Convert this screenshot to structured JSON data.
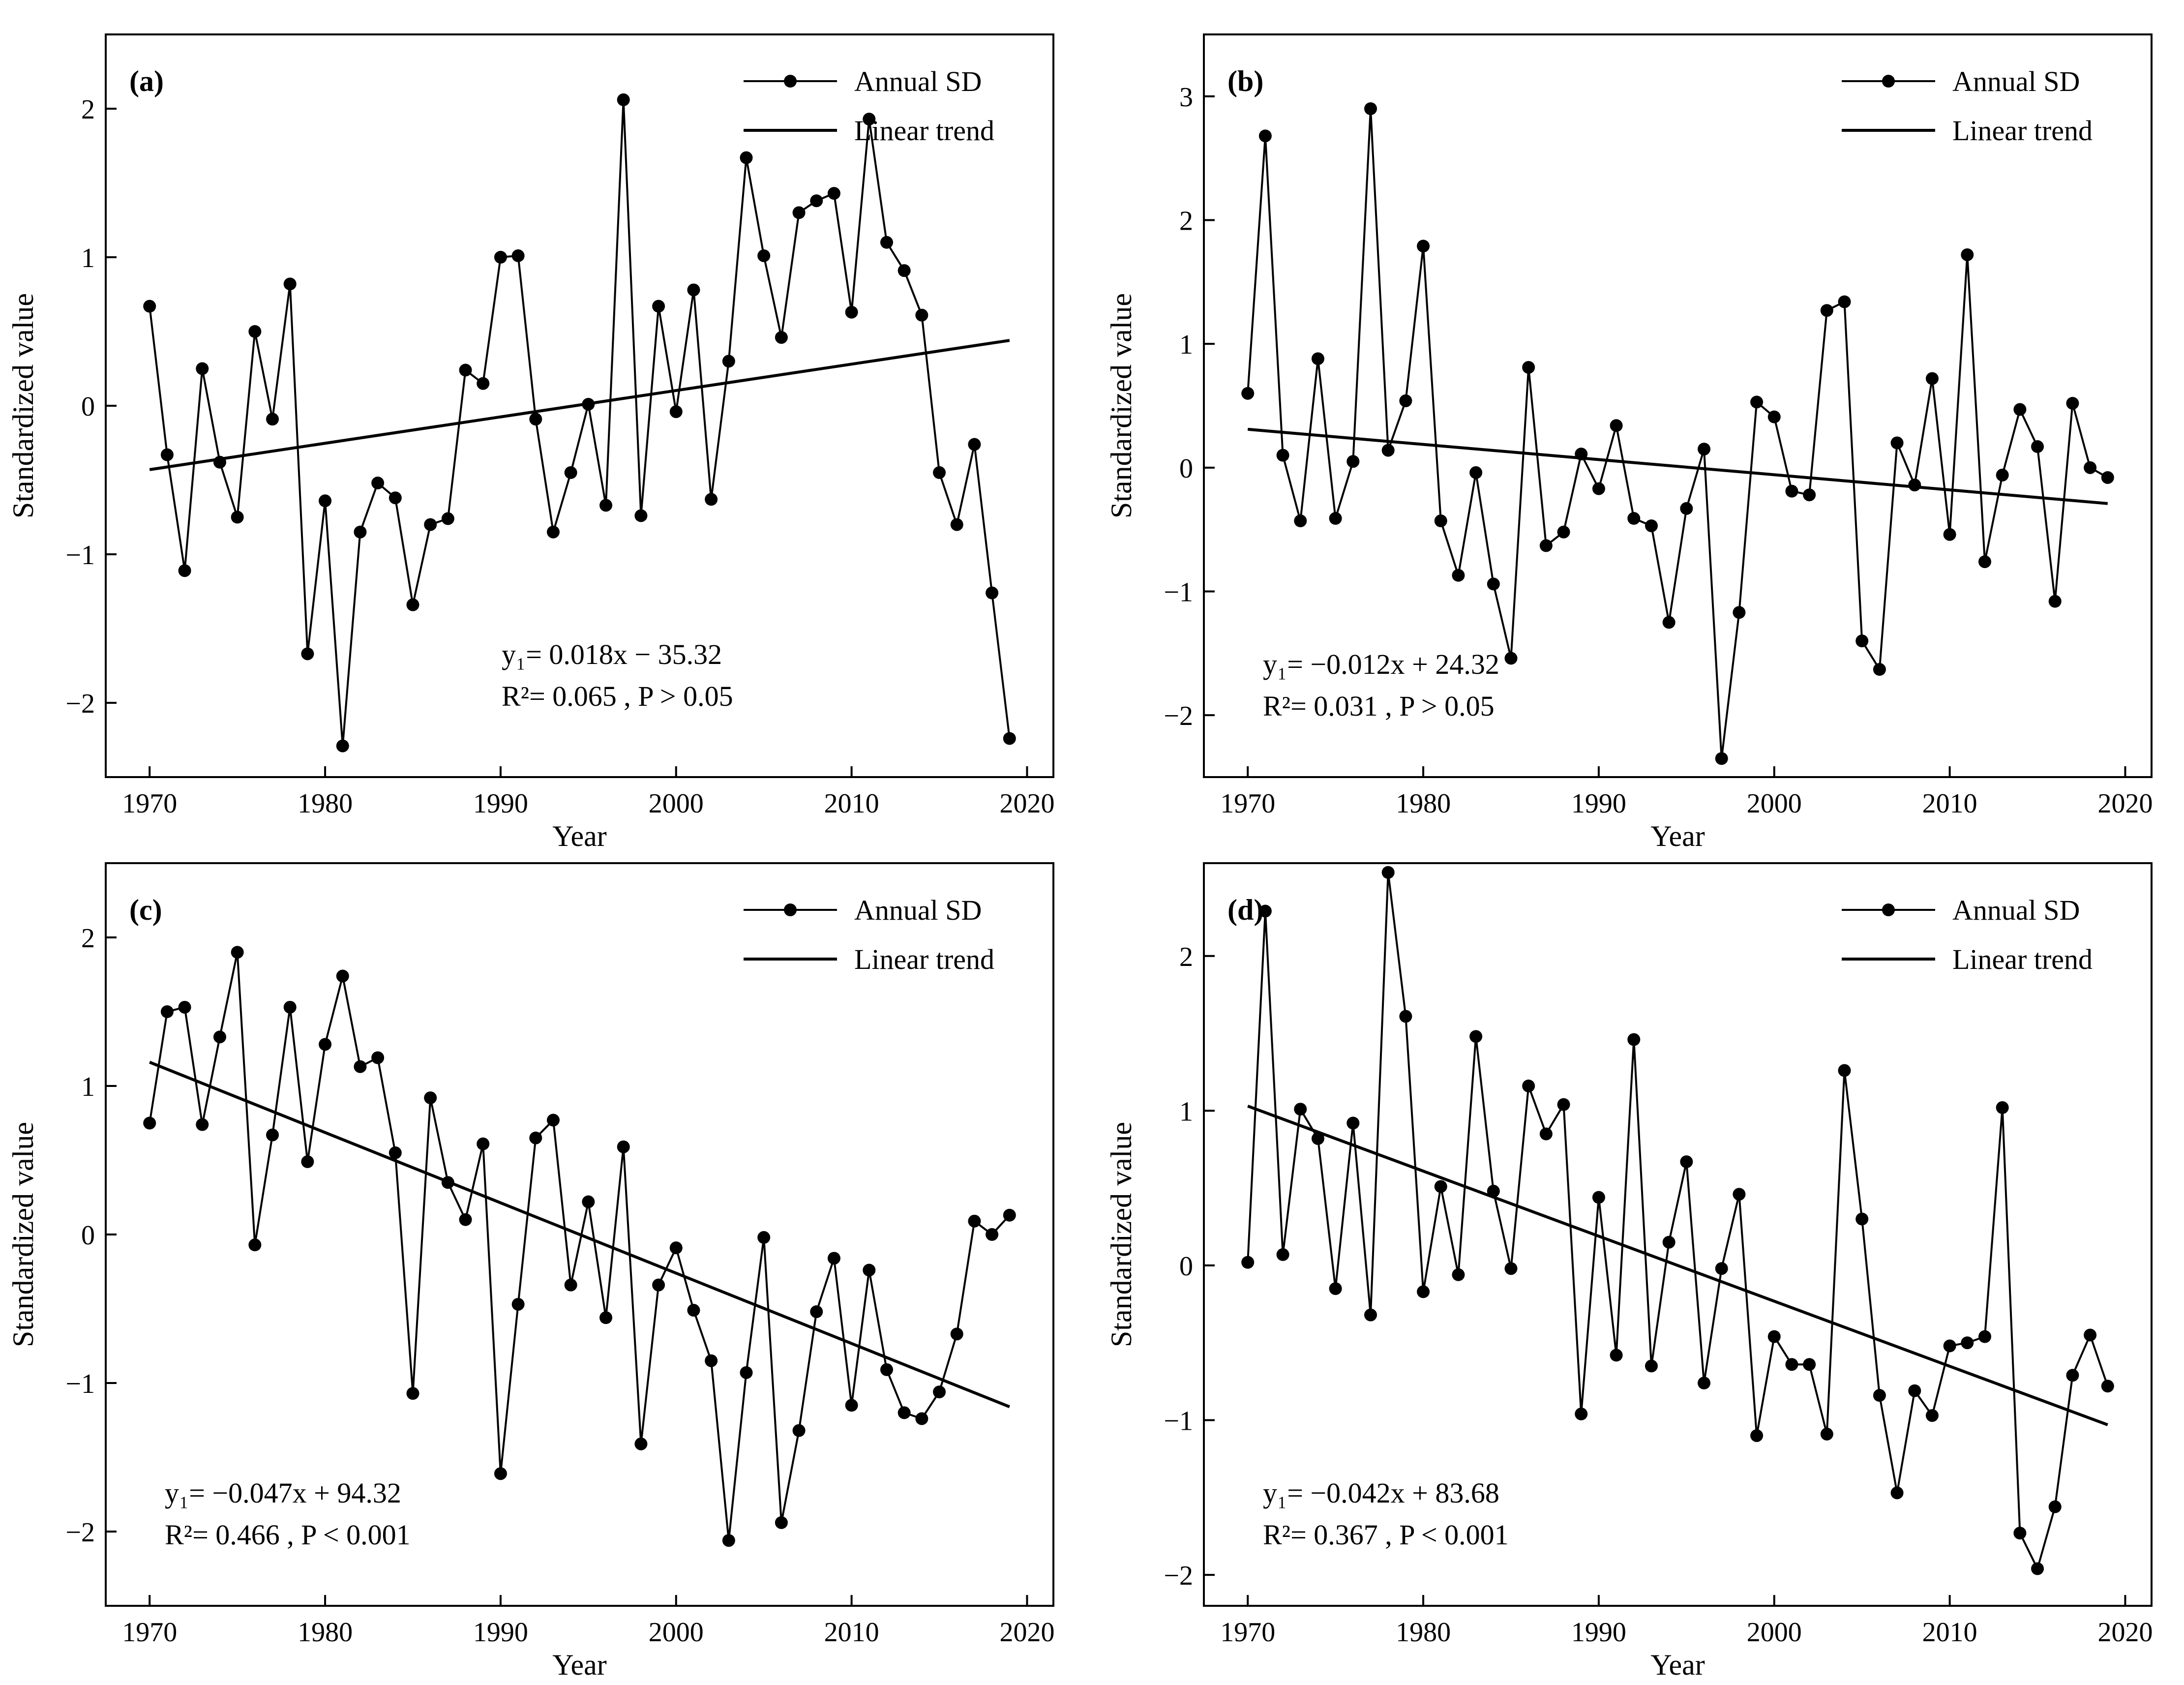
{
  "legend": {
    "series": "Annual SD",
    "trend": "Linear trend"
  },
  "xlabel": "Year",
  "ylabel": "Standardized value",
  "chart_data": [
    {
      "type": "line",
      "panel": "(a)",
      "x": [
        1970,
        1971,
        1972,
        1973,
        1974,
        1975,
        1976,
        1977,
        1978,
        1979,
        1980,
        1981,
        1982,
        1983,
        1984,
        1985,
        1986,
        1987,
        1988,
        1989,
        1990,
        1991,
        1992,
        1993,
        1994,
        1995,
        1996,
        1997,
        1998,
        1999,
        2000,
        2001,
        2002,
        2003,
        2004,
        2005,
        2006,
        2007,
        2008,
        2009,
        2010,
        2011,
        2012,
        2013,
        2014,
        2015,
        2016,
        2017,
        2018,
        2019
      ],
      "series": [
        {
          "name": "Annual SD",
          "values": [
            0.67,
            -0.33,
            -1.11,
            0.25,
            -0.38,
            -0.75,
            0.5,
            -0.09,
            0.82,
            -1.67,
            -0.64,
            -2.29,
            -0.85,
            -0.52,
            -0.62,
            -1.34,
            -0.8,
            -0.76,
            0.24,
            0.15,
            1.0,
            1.01,
            -0.09,
            -0.85,
            -0.45,
            0.01,
            -0.67,
            2.06,
            -0.74,
            0.67,
            -0.04,
            0.78,
            -0.63,
            0.3,
            1.67,
            1.01,
            0.46,
            1.3,
            1.38,
            1.43,
            0.63,
            1.93,
            1.1,
            0.91,
            0.61,
            -0.45,
            -0.8,
            -0.26,
            -1.26,
            -2.24
          ]
        }
      ],
      "trend": {
        "name": "Linear trend",
        "x": [
          1970,
          2019
        ],
        "y": [
          -0.43,
          0.44
        ]
      },
      "equation": {
        "line1": "y₁= 0.018x − 35.32",
        "line2": "R²= 0.065 , P > 0.05"
      },
      "xlabel": "Year",
      "ylabel": "Standardized value",
      "xlim": [
        1967.5,
        2021.5
      ],
      "ylim": [
        -2.5,
        2.5
      ],
      "xticks": [
        1970,
        1980,
        1990,
        2000,
        2010,
        2020
      ],
      "yticks": [
        -2,
        -1,
        0,
        1,
        2
      ],
      "legend_position": "top-right"
    },
    {
      "type": "line",
      "panel": "(b)",
      "x": [
        1970,
        1971,
        1972,
        1973,
        1974,
        1975,
        1976,
        1977,
        1978,
        1979,
        1980,
        1981,
        1982,
        1983,
        1984,
        1985,
        1986,
        1987,
        1988,
        1989,
        1990,
        1991,
        1992,
        1993,
        1994,
        1995,
        1996,
        1997,
        1998,
        1999,
        2000,
        2001,
        2002,
        2003,
        2004,
        2005,
        2006,
        2007,
        2008,
        2009,
        2010,
        2011,
        2012,
        2013,
        2014,
        2015,
        2016,
        2017,
        2018,
        2019
      ],
      "series": [
        {
          "name": "Annual SD",
          "values": [
            0.6,
            2.68,
            0.1,
            -0.43,
            0.88,
            -0.41,
            0.05,
            2.9,
            0.14,
            0.54,
            1.79,
            -0.43,
            -0.87,
            -0.04,
            -0.94,
            -1.54,
            0.81,
            -0.63,
            -0.52,
            0.11,
            -0.17,
            0.34,
            -0.41,
            -0.47,
            -1.25,
            -0.33,
            0.15,
            -2.35,
            -1.17,
            0.53,
            0.41,
            -0.19,
            -0.22,
            1.27,
            1.34,
            -1.4,
            -1.63,
            0.2,
            -0.14,
            0.72,
            -0.54,
            1.72,
            -0.76,
            -0.06,
            0.47,
            0.17,
            -1.08,
            0.52,
            0.0,
            -0.08
          ]
        }
      ],
      "trend": {
        "name": "Linear trend",
        "x": [
          1970,
          2019
        ],
        "y": [
          0.31,
          -0.29
        ]
      },
      "equation": {
        "line1": "y₁= −0.012x + 24.32",
        "line2": "R²= 0.031 , P > 0.05"
      },
      "xlabel": "Year",
      "ylabel": "Standardized value",
      "xlim": [
        1967.5,
        2021.5
      ],
      "ylim": [
        -2.5,
        3.5
      ],
      "xticks": [
        1970,
        1980,
        1990,
        2000,
        2010,
        2020
      ],
      "yticks": [
        -2,
        -1,
        0,
        1,
        2,
        3
      ],
      "legend_position": "top-right"
    },
    {
      "type": "line",
      "panel": "(c)",
      "x": [
        1970,
        1971,
        1972,
        1973,
        1974,
        1975,
        1976,
        1977,
        1978,
        1979,
        1980,
        1981,
        1982,
        1983,
        1984,
        1985,
        1986,
        1987,
        1988,
        1989,
        1990,
        1991,
        1992,
        1993,
        1994,
        1995,
        1996,
        1997,
        1998,
        1999,
        2000,
        2001,
        2002,
        2003,
        2004,
        2005,
        2006,
        2007,
        2008,
        2009,
        2010,
        2011,
        2012,
        2013,
        2014,
        2015,
        2016,
        2017,
        2018,
        2019
      ],
      "series": [
        {
          "name": "Annual SD",
          "values": [
            0.75,
            1.5,
            1.53,
            0.74,
            1.33,
            1.9,
            -0.07,
            0.67,
            1.53,
            0.49,
            1.28,
            1.74,
            1.13,
            1.19,
            0.55,
            -1.07,
            0.92,
            0.35,
            0.1,
            0.61,
            -1.61,
            -0.47,
            0.65,
            0.77,
            -0.34,
            0.22,
            -0.56,
            0.59,
            -1.41,
            -0.34,
            -0.09,
            -0.51,
            -0.85,
            -2.06,
            -0.93,
            -0.02,
            -1.94,
            -1.32,
            -0.52,
            -0.16,
            -1.15,
            -0.24,
            -0.91,
            -1.2,
            -1.24,
            -1.06,
            -0.67,
            0.09,
            0.0,
            0.13
          ]
        }
      ],
      "trend": {
        "name": "Linear trend",
        "x": [
          1970,
          2019
        ],
        "y": [
          1.16,
          -1.16
        ]
      },
      "equation": {
        "line1": "y₁= −0.047x + 94.32",
        "line2": "R²= 0.466 , P < 0.001"
      },
      "xlabel": "Year",
      "ylabel": "Standardized value",
      "xlim": [
        1967.5,
        2021.5
      ],
      "ylim": [
        -2.5,
        2.5
      ],
      "xticks": [
        1970,
        1980,
        1990,
        2000,
        2010,
        2020
      ],
      "yticks": [
        -2,
        -1,
        0,
        1,
        2
      ],
      "legend_position": "top-right"
    },
    {
      "type": "line",
      "panel": "(d)",
      "x": [
        1970,
        1971,
        1972,
        1973,
        1974,
        1975,
        1976,
        1977,
        1978,
        1979,
        1980,
        1981,
        1982,
        1983,
        1984,
        1985,
        1986,
        1987,
        1988,
        1989,
        1990,
        1991,
        1992,
        1993,
        1994,
        1995,
        1996,
        1997,
        1998,
        1999,
        2000,
        2001,
        2002,
        2003,
        2004,
        2005,
        2006,
        2007,
        2008,
        2009,
        2010,
        2011,
        2012,
        2013,
        2014,
        2015,
        2016,
        2017,
        2018,
        2019
      ],
      "series": [
        {
          "name": "Annual SD",
          "values": [
            0.02,
            2.29,
            0.07,
            1.01,
            0.82,
            -0.15,
            0.92,
            -0.32,
            2.54,
            1.61,
            -0.17,
            0.51,
            -0.06,
            1.48,
            0.48,
            -0.02,
            1.16,
            0.85,
            1.04,
            -0.96,
            0.44,
            -0.58,
            1.46,
            -0.65,
            0.15,
            0.67,
            -0.76,
            -0.02,
            0.46,
            -1.1,
            -0.46,
            -0.64,
            -0.64,
            -1.09,
            1.26,
            0.3,
            -0.84,
            -1.47,
            -0.81,
            -0.97,
            -0.52,
            -0.5,
            -0.46,
            1.02,
            -1.73,
            -1.96,
            -1.56,
            -0.71,
            -0.45,
            -0.78
          ]
        }
      ],
      "trend": {
        "name": "Linear trend",
        "x": [
          1970,
          2019
        ],
        "y": [
          1.03,
          -1.03
        ]
      },
      "equation": {
        "line1": "y₁= −0.042x + 83.68",
        "line2": "R²= 0.367 , P < 0.001"
      },
      "xlabel": "Year",
      "ylabel": "Standardized value",
      "xlim": [
        1967.5,
        2021.5
      ],
      "ylim": [
        -2.2,
        2.6
      ],
      "xticks": [
        1970,
        1980,
        1990,
        2000,
        2010,
        2020
      ],
      "yticks": [
        -2,
        -1,
        0,
        1,
        2
      ],
      "legend_position": "top-right"
    }
  ]
}
